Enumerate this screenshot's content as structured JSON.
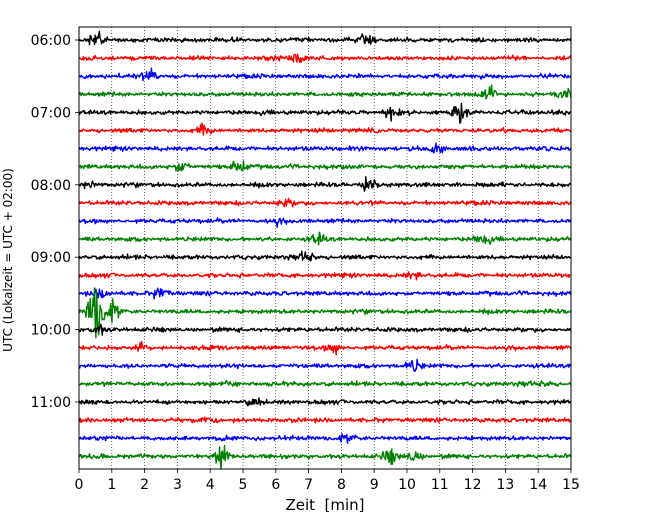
{
  "chart_data": {
    "type": "line",
    "title": "",
    "xlabel": "Zeit  [min]",
    "ylabel": "UTC (Lokalzeit = UTC + 02:00)",
    "xlim": [
      0,
      15
    ],
    "x_ticks": [
      "0",
      "1",
      "2",
      "3",
      "4",
      "5",
      "6",
      "7",
      "8",
      "9",
      "10",
      "11",
      "12",
      "13",
      "14",
      "15"
    ],
    "grid": {
      "x": true,
      "y": false,
      "style": "dotted"
    },
    "y_ticks": [
      {
        "label": "06:00",
        "trace": 0
      },
      {
        "label": "07:00",
        "trace": 4
      },
      {
        "label": "08:00",
        "trace": 8
      },
      {
        "label": "09:00",
        "trace": 12
      },
      {
        "label": "10:00",
        "trace": 16
      },
      {
        "label": "11:00",
        "trace": 20
      }
    ],
    "trace_interval_min": 15,
    "start_time": "06:00",
    "trace_colors": [
      "#000000",
      "#ff0000",
      "#0000ff",
      "#008000"
    ],
    "traces": [
      {
        "start": "06:00",
        "color": "#000000",
        "events": [
          {
            "t": 0.5,
            "amp": 1.0
          },
          {
            "t": 8.8,
            "amp": 0.6
          }
        ]
      },
      {
        "start": "06:15",
        "color": "#ff0000",
        "events": [
          {
            "t": 6.7,
            "amp": 0.7
          }
        ]
      },
      {
        "start": "06:30",
        "color": "#0000ff",
        "events": [
          {
            "t": 2.2,
            "amp": 0.6
          }
        ]
      },
      {
        "start": "06:45",
        "color": "#008000",
        "events": [
          {
            "t": 12.5,
            "amp": 0.8
          },
          {
            "t": 14.8,
            "amp": 0.7
          }
        ]
      },
      {
        "start": "07:00",
        "color": "#000000",
        "events": [
          {
            "t": 11.6,
            "amp": 1.1
          },
          {
            "t": 9.5,
            "amp": 0.5
          }
        ]
      },
      {
        "start": "07:15",
        "color": "#ff0000",
        "events": [
          {
            "t": 3.8,
            "amp": 0.6
          }
        ]
      },
      {
        "start": "07:30",
        "color": "#0000ff",
        "events": [
          {
            "t": 10.9,
            "amp": 0.5
          }
        ]
      },
      {
        "start": "07:45",
        "color": "#008000",
        "events": [
          {
            "t": 4.9,
            "amp": 0.9
          },
          {
            "t": 3.1,
            "amp": 0.6
          }
        ]
      },
      {
        "start": "08:00",
        "color": "#000000",
        "events": [
          {
            "t": 8.8,
            "amp": 0.9
          },
          {
            "t": 0.3,
            "amp": 0.4
          }
        ]
      },
      {
        "start": "08:15",
        "color": "#ff0000",
        "events": [
          {
            "t": 6.3,
            "amp": 0.5
          }
        ]
      },
      {
        "start": "08:30",
        "color": "#0000ff",
        "events": [
          {
            "t": 6.0,
            "amp": 0.3
          }
        ]
      },
      {
        "start": "08:45",
        "color": "#008000",
        "events": [
          {
            "t": 7.3,
            "amp": 0.6
          },
          {
            "t": 12.3,
            "amp": 0.5
          }
        ]
      },
      {
        "start": "09:00",
        "color": "#000000",
        "events": [
          {
            "t": 7.0,
            "amp": 0.7
          }
        ]
      },
      {
        "start": "09:15",
        "color": "#ff0000",
        "events": [
          {
            "t": 10.2,
            "amp": 0.4
          }
        ]
      },
      {
        "start": "09:30",
        "color": "#0000ff",
        "events": [
          {
            "t": 2.5,
            "amp": 0.7
          },
          {
            "t": 0.7,
            "amp": 0.5
          }
        ]
      },
      {
        "start": "09:45",
        "color": "#008000",
        "events": [
          {
            "t": 0.5,
            "amp": 3.5
          },
          {
            "t": 1.05,
            "amp": 1.4
          }
        ]
      },
      {
        "start": "10:00",
        "color": "#000000",
        "events": [
          {
            "t": 0.6,
            "amp": 0.6
          }
        ]
      },
      {
        "start": "10:15",
        "color": "#ff0000",
        "events": [
          {
            "t": 7.8,
            "amp": 0.7
          },
          {
            "t": 1.9,
            "amp": 0.5
          }
        ]
      },
      {
        "start": "10:30",
        "color": "#0000ff",
        "events": [
          {
            "t": 10.2,
            "amp": 0.7
          }
        ]
      },
      {
        "start": "10:45",
        "color": "#008000",
        "events": [
          {
            "t": 14.2,
            "amp": 0.4
          }
        ]
      },
      {
        "start": "11:00",
        "color": "#000000",
        "events": [
          {
            "t": 5.3,
            "amp": 0.5
          }
        ]
      },
      {
        "start": "11:15",
        "color": "#ff0000",
        "events": [
          {
            "t": 4.0,
            "amp": 0.4
          }
        ]
      },
      {
        "start": "11:30",
        "color": "#0000ff",
        "events": [
          {
            "t": 8.2,
            "amp": 0.6
          }
        ]
      },
      {
        "start": "11:45",
        "color": "#008000",
        "events": [
          {
            "t": 4.3,
            "amp": 1.2
          },
          {
            "t": 9.5,
            "amp": 0.8
          },
          {
            "t": 10.2,
            "amp": 0.7
          }
        ]
      }
    ]
  }
}
